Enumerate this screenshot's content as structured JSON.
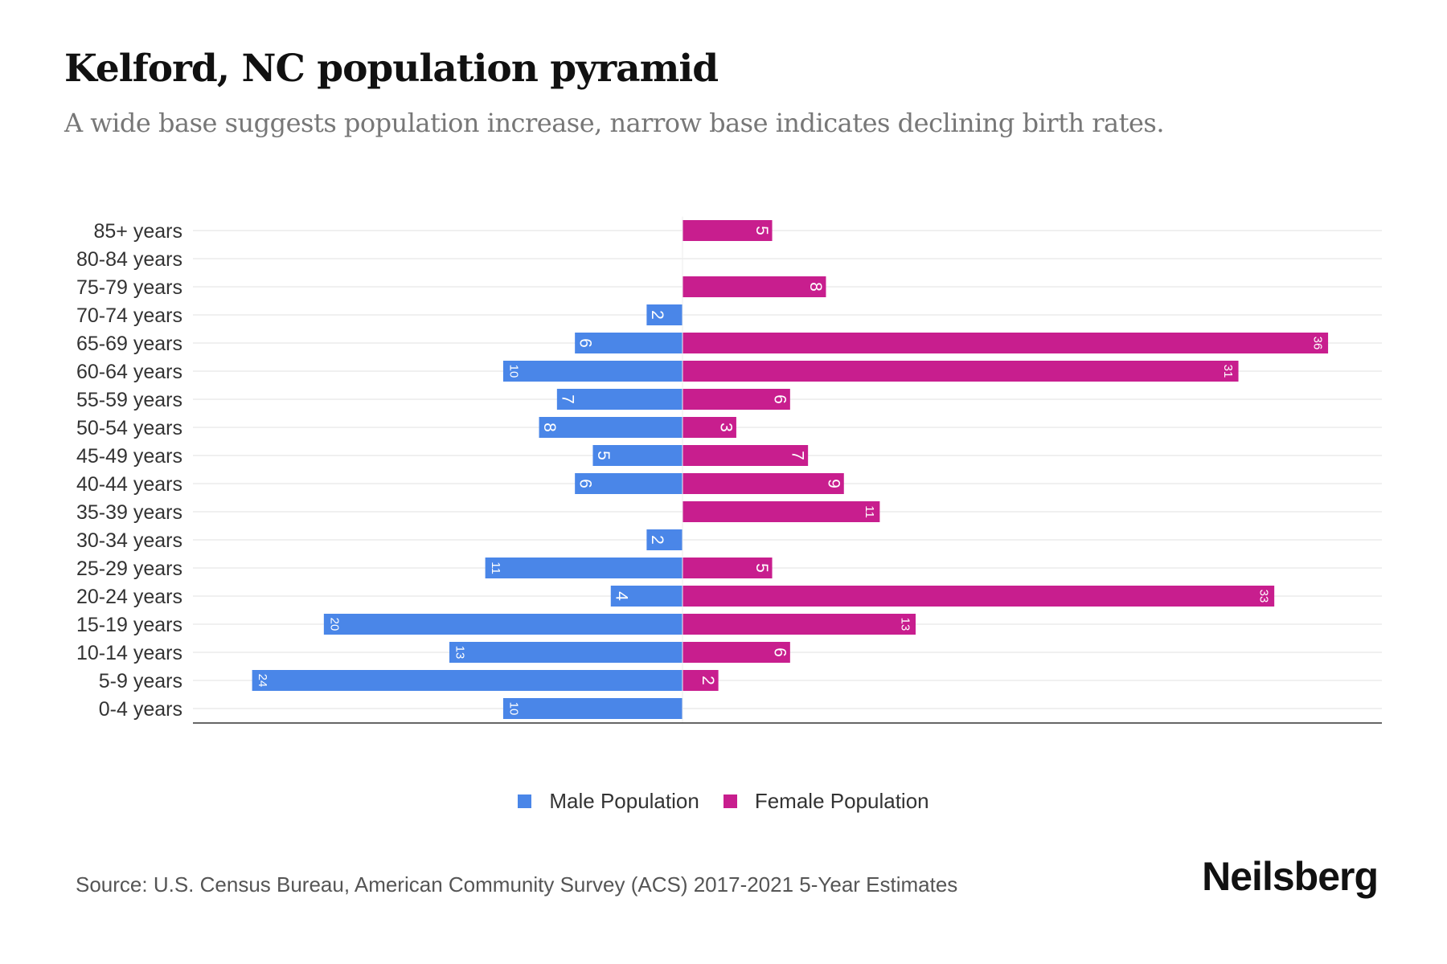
{
  "chart_data": {
    "type": "bar",
    "orientation": "horizontal-pyramid",
    "title": "Kelford, NC population pyramid",
    "subtitle": "A wide base suggests population increase, narrow base indicates declining birth rates.",
    "categories": [
      "85+ years",
      "80-84 years",
      "75-79 years",
      "70-74 years",
      "65-69 years",
      "60-64 years",
      "55-59 years",
      "50-54 years",
      "45-49 years",
      "40-44 years",
      "35-39 years",
      "30-34 years",
      "25-29 years",
      "20-24 years",
      "15-19 years",
      "10-14 years",
      "5-9 years",
      "0-4 years"
    ],
    "series": [
      {
        "name": "Male Population",
        "color": "#4a86e8",
        "values": [
          0,
          0,
          0,
          2,
          6,
          10,
          7,
          8,
          5,
          6,
          0,
          2,
          11,
          4,
          20,
          13,
          24,
          10
        ]
      },
      {
        "name": "Female Population",
        "color": "#c81e8e",
        "values": [
          5,
          0,
          8,
          0,
          36,
          31,
          6,
          3,
          7,
          9,
          11,
          0,
          5,
          33,
          13,
          6,
          2,
          0
        ]
      }
    ],
    "xlim": [
      -27.3,
      39
    ],
    "legend_position": "bottom",
    "grid": true
  },
  "source": "Source: U.S. Census Bureau, American Community Survey (ACS) 2017-2021 5-Year Estimates",
  "logo": "Neilsberg"
}
